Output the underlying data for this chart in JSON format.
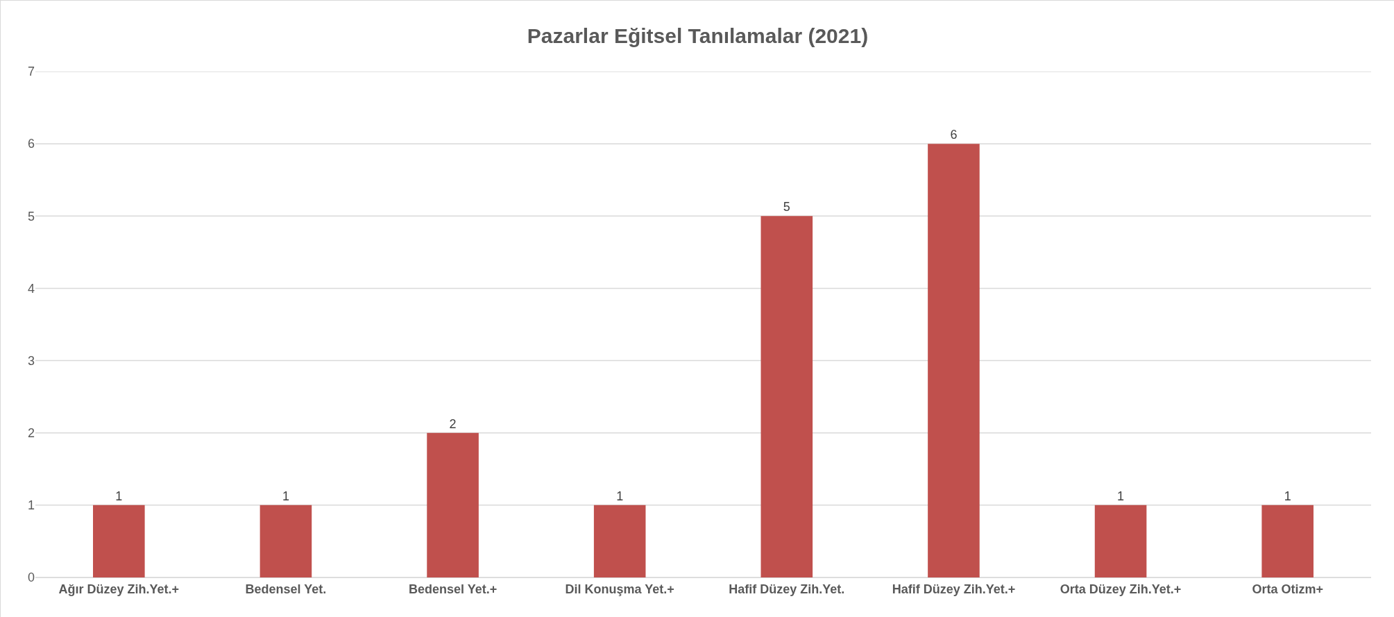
{
  "chart_data": {
    "type": "bar",
    "title": "Pazarlar Eğitsel Tanılamalar (2021)",
    "categories": [
      "Ağır Düzey Zih.Yet.+",
      "Bedensel Yet.",
      "Bedensel Yet.+",
      "Dil Konuşma Yet.+",
      "Hafif Düzey Zih.Yet.",
      "Hafif Düzey Zih.Yet.+",
      "Orta Düzey Zih.Yet.+",
      "Orta Otizm+"
    ],
    "values": [
      1,
      1,
      2,
      1,
      5,
      6,
      1,
      1
    ],
    "color": "#c0504d",
    "ylim": [
      0,
      7
    ],
    "yticks": [
      0,
      1,
      2,
      3,
      4,
      5,
      6,
      7
    ],
    "grid": "y",
    "data_labels": true
  }
}
